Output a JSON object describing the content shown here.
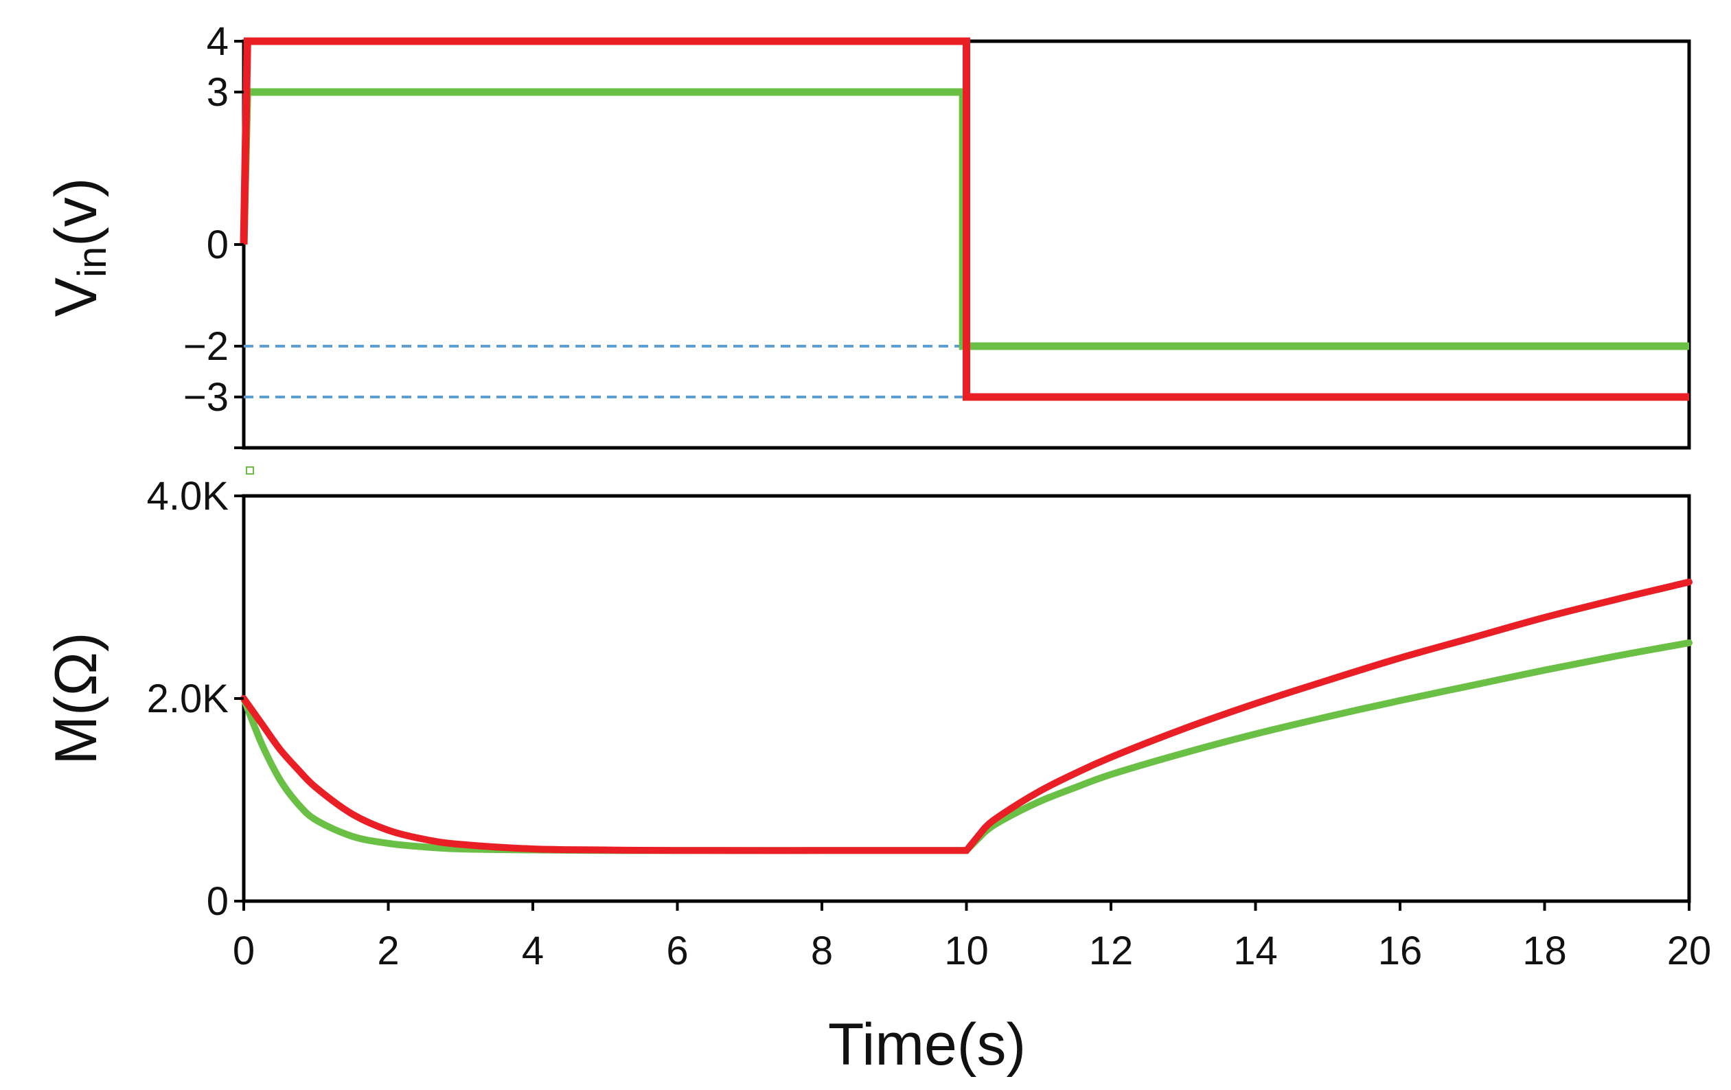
{
  "chart_data": [
    {
      "type": "line",
      "panel": "top",
      "xlabel": "",
      "ylabel": {
        "main": "V",
        "sub": "in",
        "rest": "(v)"
      },
      "xlim": [
        0,
        20
      ],
      "ylim": [
        -4,
        4
      ],
      "yticks": [
        {
          "value": 4,
          "label": "4"
        },
        {
          "value": 3,
          "label": "3"
        },
        {
          "value": 0,
          "label": "0"
        },
        {
          "value": -2,
          "label": "−2"
        },
        {
          "value": -3,
          "label": "−3"
        }
      ],
      "series": [
        {
          "color": "#6abf45",
          "x": [
            0,
            0.05,
            0.05,
            9.95,
            9.95,
            20
          ],
          "y": [
            0,
            3,
            3,
            3,
            -2,
            -2
          ]
        },
        {
          "color": "#ea1f26",
          "x": [
            0,
            0.05,
            0.05,
            10,
            10,
            20
          ],
          "y": [
            0,
            4,
            4,
            4,
            -3,
            -3
          ]
        }
      ],
      "reference_lines": [
        {
          "y": -2,
          "x_range": [
            0,
            10
          ],
          "color": "#5b9fd2",
          "style": "dashed"
        },
        {
          "y": -3,
          "x_range": [
            0,
            10
          ],
          "color": "#5b9fd2",
          "style": "dashed"
        }
      ]
    },
    {
      "type": "line",
      "panel": "bottom",
      "xlabel": "Time(s)",
      "ylabel": "M(Ω)",
      "xlim": [
        0,
        20
      ],
      "ylim": [
        0,
        4000
      ],
      "xticks": [
        {
          "value": 0,
          "label": "0"
        },
        {
          "value": 2,
          "label": "2"
        },
        {
          "value": 4,
          "label": "4"
        },
        {
          "value": 6,
          "label": "6"
        },
        {
          "value": 8,
          "label": "8"
        },
        {
          "value": 10,
          "label": "10"
        },
        {
          "value": 12,
          "label": "12"
        },
        {
          "value": 14,
          "label": "14"
        },
        {
          "value": 16,
          "label": "16"
        },
        {
          "value": 18,
          "label": "18"
        },
        {
          "value": 20,
          "label": "20"
        }
      ],
      "yticks": [
        {
          "value": 0,
          "label": "0"
        },
        {
          "value": 2000,
          "label": "2.0K"
        },
        {
          "value": 4000,
          "label": "4.0K"
        }
      ],
      "series": [
        {
          "color": "#6abf45",
          "x": [
            0,
            0.25,
            0.5,
            0.75,
            1,
            1.5,
            2,
            2.5,
            3,
            4,
            5,
            6,
            8,
            10,
            10.25,
            10.5,
            11,
            11.5,
            12,
            13,
            14,
            15,
            16,
            17,
            18,
            19,
            20
          ],
          "y": [
            2000,
            1550,
            1200,
            960,
            800,
            640,
            570,
            535,
            515,
            505,
            500,
            500,
            500,
            500,
            680,
            800,
            980,
            1120,
            1250,
            1460,
            1650,
            1820,
            1980,
            2130,
            2280,
            2420,
            2550
          ]
        },
        {
          "color": "#ea1f26",
          "x": [
            0,
            0.25,
            0.5,
            0.75,
            1,
            1.5,
            2,
            2.5,
            3,
            4,
            5,
            6,
            8,
            10,
            10.25,
            10.5,
            11,
            11.5,
            12,
            13,
            14,
            15,
            16,
            17,
            18,
            19,
            20
          ],
          "y": [
            2000,
            1750,
            1500,
            1300,
            1120,
            860,
            700,
            610,
            560,
            515,
            505,
            500,
            500,
            500,
            720,
            860,
            1080,
            1260,
            1420,
            1700,
            1950,
            2180,
            2400,
            2600,
            2800,
            2980,
            3150
          ]
        }
      ]
    }
  ]
}
